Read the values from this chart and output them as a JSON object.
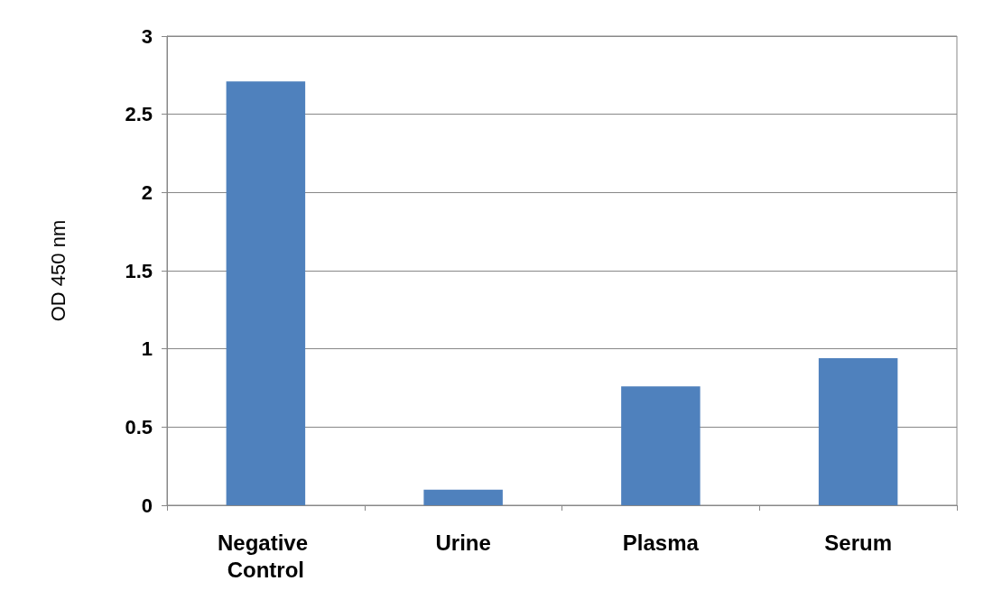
{
  "chart_data": {
    "type": "bar",
    "ylabel": "OD 450 nm",
    "categories": [
      "Negative Control",
      "Urine",
      "Plasma",
      "Serum"
    ],
    "values": [
      2.71,
      0.1,
      0.76,
      0.94
    ],
    "color": "#4f81bd",
    "ylim": [
      0,
      3
    ],
    "yticks": [
      0,
      0.5,
      1,
      1.5,
      2,
      2.5,
      3
    ],
    "grid": "y"
  }
}
